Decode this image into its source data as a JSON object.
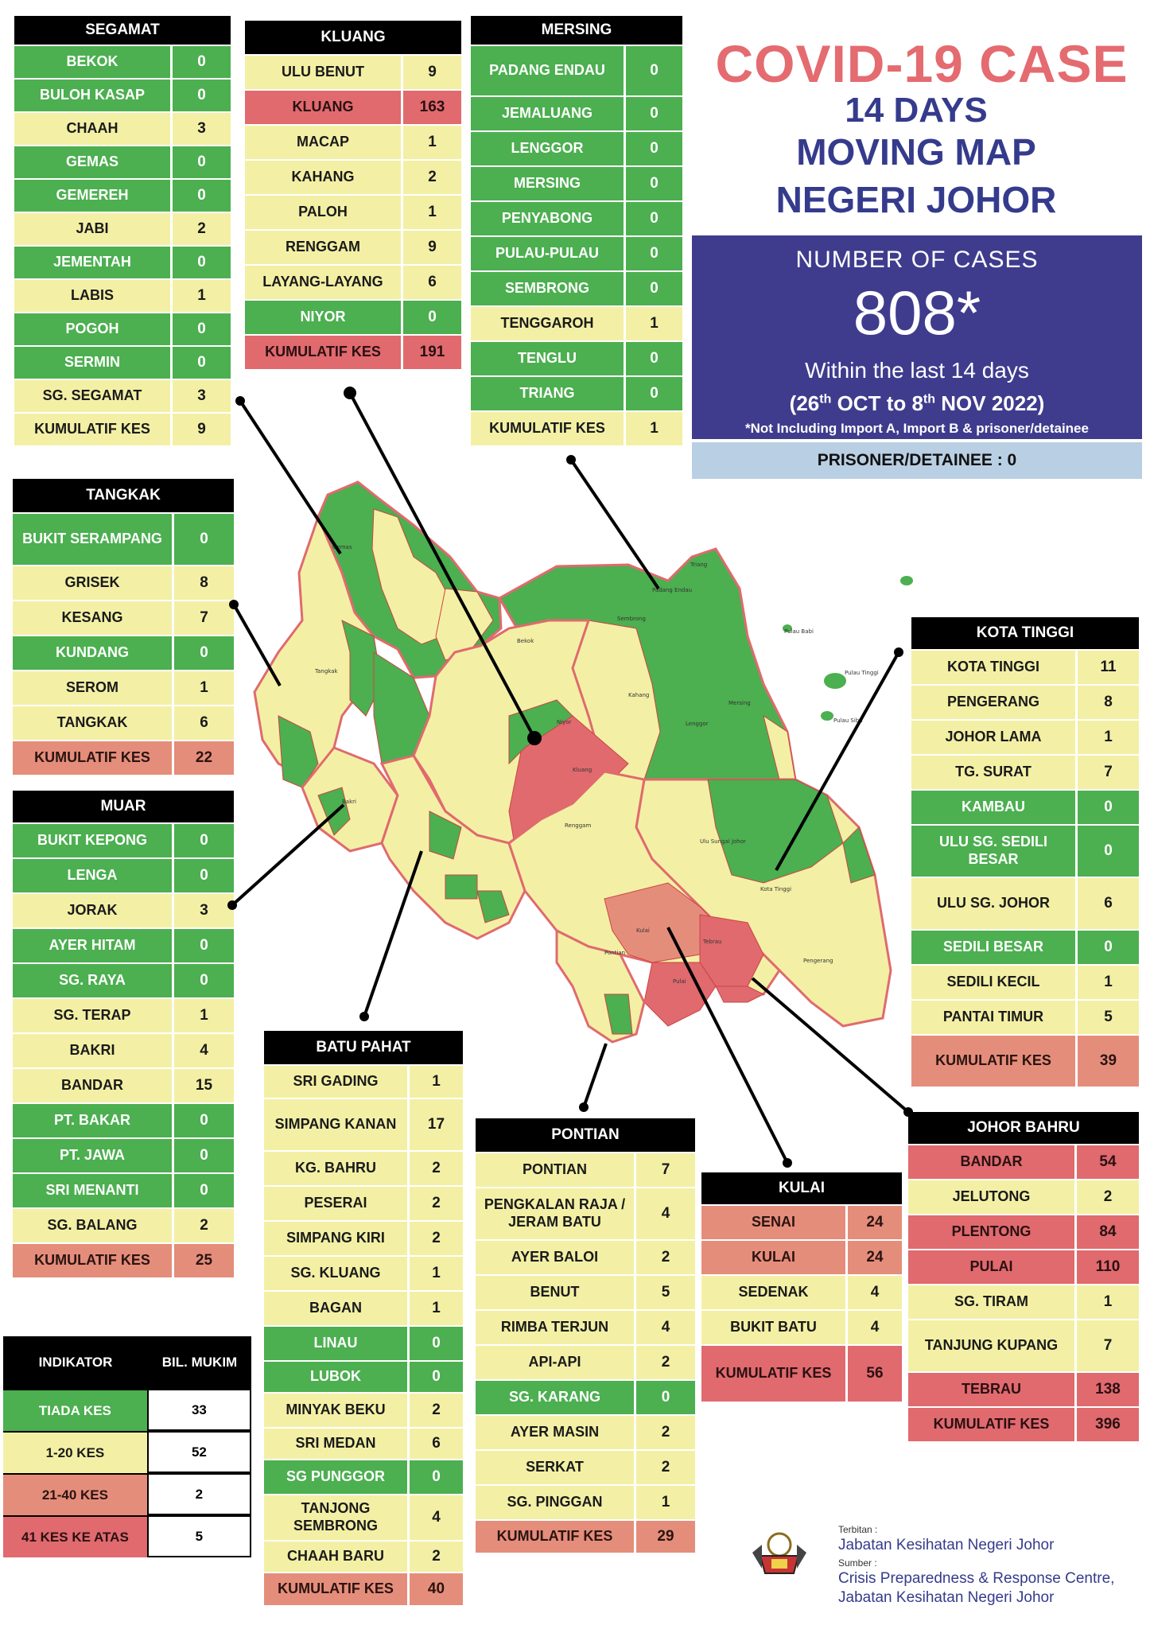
{
  "title": {
    "line1": "COVID-19 CASE",
    "line2": "14 DAYS",
    "line3": "MOVING MAP",
    "line4": "NEGERI JOHOR"
  },
  "summary": {
    "heading": "NUMBER OF CASES",
    "total": "808*",
    "within": "Within the last 14 days",
    "period_open": "(26",
    "period_sup1": "th",
    "period_mid": " OCT to 8",
    "period_sup2": "th",
    "period_close": " NOV 2022)",
    "note": "*Not Including Import A, Import B & prisoner/detainee"
  },
  "prisoner": "PRISONER/DETAINEE : 0",
  "colors": {
    "green": "#4caf50",
    "yellow": "#f3f0a5",
    "orange": "#e58d7b",
    "red": "#e06a6e",
    "header": "#000000",
    "title": "#e46b70",
    "subtitle": "#353b8c",
    "summary_bg": "#3f3c8e",
    "prisoner_bg": "#b9cfe3"
  },
  "districts": {
    "segamat": {
      "name": "SEGAMAT",
      "rows": [
        {
          "label": "BEKOK",
          "value": "0",
          "color": "green"
        },
        {
          "label": "BULOH KASAP",
          "value": "0",
          "color": "green"
        },
        {
          "label": "CHAAH",
          "value": "3",
          "color": "yellow"
        },
        {
          "label": "GEMAS",
          "value": "0",
          "color": "green"
        },
        {
          "label": "GEMEREH",
          "value": "0",
          "color": "green"
        },
        {
          "label": "JABI",
          "value": "2",
          "color": "yellow"
        },
        {
          "label": "JEMENTAH",
          "value": "0",
          "color": "green"
        },
        {
          "label": "LABIS",
          "value": "1",
          "color": "yellow"
        },
        {
          "label": "POGOH",
          "value": "0",
          "color": "green"
        },
        {
          "label": "SERMIN",
          "value": "0",
          "color": "green"
        },
        {
          "label": "SG. SEGAMAT",
          "value": "3",
          "color": "yellow"
        },
        {
          "label": "KUMULATIF KES",
          "value": "9",
          "color": "yellow"
        }
      ]
    },
    "kluang": {
      "name": "KLUANG",
      "rows": [
        {
          "label": "ULU BENUT",
          "value": "9",
          "color": "yellow"
        },
        {
          "label": "KLUANG",
          "value": "163",
          "color": "red"
        },
        {
          "label": "MACAP",
          "value": "1",
          "color": "yellow"
        },
        {
          "label": "KAHANG",
          "value": "2",
          "color": "yellow"
        },
        {
          "label": "PALOH",
          "value": "1",
          "color": "yellow"
        },
        {
          "label": "RENGGAM",
          "value": "9",
          "color": "yellow"
        },
        {
          "label": "LAYANG-LAYANG",
          "value": "6",
          "color": "yellow"
        },
        {
          "label": "NIYOR",
          "value": "0",
          "color": "green"
        },
        {
          "label": "KUMULATIF KES",
          "value": "191",
          "color": "red"
        }
      ]
    },
    "mersing": {
      "name": "MERSING",
      "rows": [
        {
          "label": "PADANG ENDAU",
          "value": "0",
          "color": "green"
        },
        {
          "label": "JEMALUANG",
          "value": "0",
          "color": "green"
        },
        {
          "label": "LENGGOR",
          "value": "0",
          "color": "green"
        },
        {
          "label": "MERSING",
          "value": "0",
          "color": "green"
        },
        {
          "label": "PENYABONG",
          "value": "0",
          "color": "green"
        },
        {
          "label": "PULAU-PULAU",
          "value": "0",
          "color": "green"
        },
        {
          "label": "SEMBRONG",
          "value": "0",
          "color": "green"
        },
        {
          "label": "TENGGAROH",
          "value": "1",
          "color": "yellow"
        },
        {
          "label": "TENGLU",
          "value": "0",
          "color": "green"
        },
        {
          "label": "TRIANG",
          "value": "0",
          "color": "green"
        },
        {
          "label": "KUMULATIF KES",
          "value": "1",
          "color": "yellow"
        }
      ]
    },
    "tangkak": {
      "name": "TANGKAK",
      "rows": [
        {
          "label": "BUKIT SERAMPANG",
          "value": "0",
          "color": "green"
        },
        {
          "label": "GRISEK",
          "value": "8",
          "color": "yellow"
        },
        {
          "label": "KESANG",
          "value": "7",
          "color": "yellow"
        },
        {
          "label": "KUNDANG",
          "value": "0",
          "color": "green"
        },
        {
          "label": "SEROM",
          "value": "1",
          "color": "yellow"
        },
        {
          "label": "TANGKAK",
          "value": "6",
          "color": "yellow"
        },
        {
          "label": "KUMULATIF KES",
          "value": "22",
          "color": "orange"
        }
      ]
    },
    "muar": {
      "name": "MUAR",
      "rows": [
        {
          "label": "BUKIT KEPONG",
          "value": "0",
          "color": "green"
        },
        {
          "label": "LENGA",
          "value": "0",
          "color": "green"
        },
        {
          "label": "JORAK",
          "value": "3",
          "color": "yellow"
        },
        {
          "label": "AYER HITAM",
          "value": "0",
          "color": "green"
        },
        {
          "label": "SG. RAYA",
          "value": "0",
          "color": "green"
        },
        {
          "label": "SG. TERAP",
          "value": "1",
          "color": "yellow"
        },
        {
          "label": "BAKRI",
          "value": "4",
          "color": "yellow"
        },
        {
          "label": "BANDAR",
          "value": "15",
          "color": "yellow"
        },
        {
          "label": "PT. BAKAR",
          "value": "0",
          "color": "green"
        },
        {
          "label": "PT. JAWA",
          "value": "0",
          "color": "green"
        },
        {
          "label": "SRI MENANTI",
          "value": "0",
          "color": "green"
        },
        {
          "label": "SG. BALANG",
          "value": "2",
          "color": "yellow"
        },
        {
          "label": "KUMULATIF KES",
          "value": "25",
          "color": "orange"
        }
      ]
    },
    "batu_pahat": {
      "name": "BATU PAHAT",
      "rows": [
        {
          "label": "SRI GADING",
          "value": "1",
          "color": "yellow"
        },
        {
          "label": "SIMPANG KANAN",
          "value": "17",
          "color": "yellow"
        },
        {
          "label": "KG. BAHRU",
          "value": "2",
          "color": "yellow"
        },
        {
          "label": "PESERAI",
          "value": "2",
          "color": "yellow"
        },
        {
          "label": "SIMPANG KIRI",
          "value": "2",
          "color": "yellow"
        },
        {
          "label": "SG. KLUANG",
          "value": "1",
          "color": "yellow"
        },
        {
          "label": "BAGAN",
          "value": "1",
          "color": "yellow"
        },
        {
          "label": "LINAU",
          "value": "0",
          "color": "green"
        },
        {
          "label": "LUBOK",
          "value": "0",
          "color": "green"
        },
        {
          "label": "MINYAK BEKU",
          "value": "2",
          "color": "yellow"
        },
        {
          "label": "SRI MEDAN",
          "value": "6",
          "color": "yellow"
        },
        {
          "label": "SG PUNGGOR",
          "value": "0",
          "color": "green"
        },
        {
          "label": "TANJONG SEMBRONG",
          "value": "4",
          "color": "yellow"
        },
        {
          "label": "CHAAH BARU",
          "value": "2",
          "color": "yellow"
        },
        {
          "label": "KUMULATIF KES",
          "value": "40",
          "color": "orange"
        }
      ]
    },
    "pontian": {
      "name": "PONTIAN",
      "rows": [
        {
          "label": "PONTIAN",
          "value": "7",
          "color": "yellow"
        },
        {
          "label": "PENGKALAN RAJA / JERAM BATU",
          "value": "4",
          "color": "yellow"
        },
        {
          "label": "AYER BALOI",
          "value": "2",
          "color": "yellow"
        },
        {
          "label": "BENUT",
          "value": "5",
          "color": "yellow"
        },
        {
          "label": "RIMBA TERJUN",
          "value": "4",
          "color": "yellow"
        },
        {
          "label": "API-API",
          "value": "2",
          "color": "yellow"
        },
        {
          "label": "SG. KARANG",
          "value": "0",
          "color": "green"
        },
        {
          "label": "AYER MASIN",
          "value": "2",
          "color": "yellow"
        },
        {
          "label": "SERKAT",
          "value": "2",
          "color": "yellow"
        },
        {
          "label": "SG. PINGGAN",
          "value": "1",
          "color": "yellow"
        },
        {
          "label": "KUMULATIF KES",
          "value": "29",
          "color": "orange"
        }
      ]
    },
    "kulai": {
      "name": "KULAI",
      "rows": [
        {
          "label": "SENAI",
          "value": "24",
          "color": "orange"
        },
        {
          "label": "KULAI",
          "value": "24",
          "color": "orange"
        },
        {
          "label": "SEDENAK",
          "value": "4",
          "color": "yellow"
        },
        {
          "label": "BUKIT BATU",
          "value": "4",
          "color": "yellow"
        },
        {
          "label": "KUMULATIF KES",
          "value": "56",
          "color": "red"
        }
      ]
    },
    "kota_tinggi": {
      "name": "KOTA TINGGI",
      "rows": [
        {
          "label": "KOTA TINGGI",
          "value": "11",
          "color": "yellow"
        },
        {
          "label": "PENGERANG",
          "value": "8",
          "color": "yellow"
        },
        {
          "label": "JOHOR LAMA",
          "value": "1",
          "color": "yellow"
        },
        {
          "label": "TG. SURAT",
          "value": "7",
          "color": "yellow"
        },
        {
          "label": "KAMBAU",
          "value": "0",
          "color": "green"
        },
        {
          "label": "ULU SG. SEDILI BESAR",
          "value": "0",
          "color": "green"
        },
        {
          "label": "ULU  SG. JOHOR",
          "value": "6",
          "color": "yellow"
        },
        {
          "label": "SEDILI BESAR",
          "value": "0",
          "color": "green"
        },
        {
          "label": "SEDILI KECIL",
          "value": "1",
          "color": "yellow"
        },
        {
          "label": "PANTAI TIMUR",
          "value": "5",
          "color": "yellow"
        },
        {
          "label": "KUMULATIF KES",
          "value": "39",
          "color": "orange"
        }
      ]
    },
    "johor_bahru": {
      "name": "JOHOR BAHRU",
      "rows": [
        {
          "label": "BANDAR",
          "value": "54",
          "color": "red"
        },
        {
          "label": "JELUTONG",
          "value": "2",
          "color": "yellow"
        },
        {
          "label": "PLENTONG",
          "value": "84",
          "color": "red"
        },
        {
          "label": "PULAI",
          "value": "110",
          "color": "red"
        },
        {
          "label": "SG. TIRAM",
          "value": "1",
          "color": "yellow"
        },
        {
          "label": "TANJUNG KUPANG",
          "value": "7",
          "color": "yellow"
        },
        {
          "label": "TEBRAU",
          "value": "138",
          "color": "red"
        },
        {
          "label": "KUMULATIF KES",
          "value": "396",
          "color": "red"
        }
      ]
    }
  },
  "indicator": {
    "header_left": "INDIKATOR",
    "header_right": "BIL. MUKIM",
    "rows": [
      {
        "label": "TIADA KES",
        "value": "33",
        "color": "green"
      },
      {
        "label": "1-20 KES",
        "value": "52",
        "color": "yellow"
      },
      {
        "label": "21-40 KES",
        "value": "2",
        "color": "orange"
      },
      {
        "label": "41 KES KE ATAS",
        "value": "5",
        "color": "red"
      }
    ]
  },
  "map_labels": [
    "Gemas",
    "Bukit Kepong",
    "Batu Anam",
    "Sermin",
    "Jabi",
    "Sungai Segamat",
    "Jementah",
    "Pogoh",
    "Labis",
    "Bekok",
    "Sembrong",
    "Padang Endau",
    "Triang",
    "Penyabong",
    "Tenglu",
    "Pulau Babi",
    "Pulau Tinggi",
    "Pulau Sibu",
    "Jemaluang",
    "Tenggaroh",
    "Mersing",
    "Lenggor",
    "Kahang",
    "Paloh",
    "Niyor",
    "Kluang",
    "Chaah",
    "Bukit Serampang",
    "Tangkak",
    "Grisek",
    "Bukit Kepong",
    "Lenga",
    "Serom",
    "Kundang",
    "Kesang",
    "Jorak",
    "Ayer Hitam",
    "Bakri",
    "Sri Medan",
    "Chaah Bahru",
    "Tanjung Sembrong",
    "Renggam",
    "Ulu Sungai Johor",
    "Ulu Sungai Sedili Besar",
    "Kambau",
    "Sedili Besar",
    "Sedili Kecil",
    "Kota Tinggi",
    "Layang-layang",
    "Machap",
    "Linau",
    "Sri Gading",
    "Simpang Kanan",
    "Minyak Beku",
    "Simpang Kiri",
    "Ulu Benut",
    "Sedenak",
    "Bukit Batu",
    "Senai",
    "Kulai",
    "Tebrau",
    "Plentong",
    "Pulai",
    "Bandar Johor Bahru",
    "Tanjung Kupang",
    "Johor Lama",
    "Tanjung Surat",
    "Pengerang",
    "Pantai Timur",
    "Pontian",
    "Api-api",
    "Benut",
    "Ayer Baloi",
    "Rimba Terjun",
    "Air Masin",
    "Serkat"
  ],
  "footer": {
    "terbitan_label": "Terbitan :",
    "terbitan": "Jabatan Kesihatan Negeri Johor",
    "sumber_label": "Sumber :",
    "sumber1": "Crisis Preparedness & Response Centre,",
    "sumber2": "Jabatan Kesihatan Negeri Johor"
  }
}
